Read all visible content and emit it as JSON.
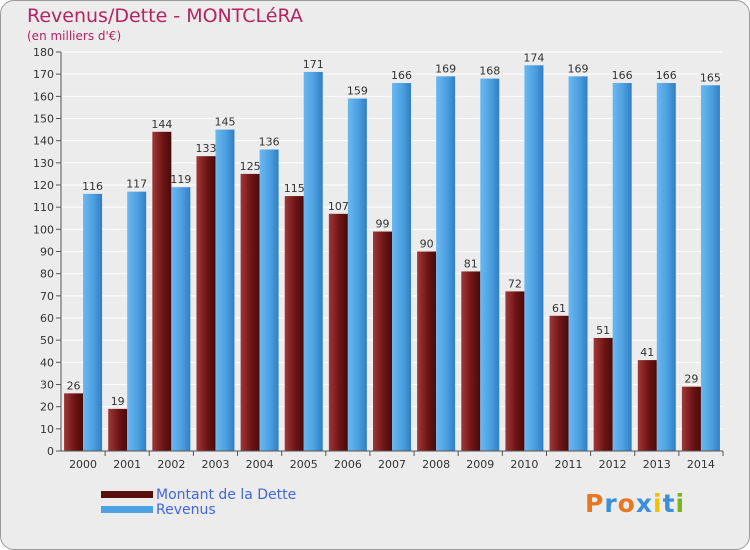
{
  "title": "Revenus/Dette - MONTCLéRA",
  "subtitle": "(en milliers d'€)",
  "legend": {
    "dette": "Montant de la Dette",
    "revenus": "Revenus"
  },
  "logo": "Proxiti",
  "colors": {
    "dette": "#701a1a",
    "revenus": "#4ea3e4",
    "title": "#b4245e",
    "legend_text": "#4466dd"
  },
  "chart_data": {
    "type": "bar",
    "title": "Revenus/Dette - MONTCLéRA",
    "subtitle": "(en milliers d'€)",
    "categories": [
      "2000",
      "2001",
      "2002",
      "2003",
      "2004",
      "2005",
      "2006",
      "2007",
      "2008",
      "2009",
      "2010",
      "2011",
      "2012",
      "2013",
      "2014"
    ],
    "series": [
      {
        "name": "Montant de la Dette",
        "values": [
          26,
          19,
          144,
          133,
          125,
          115,
          107,
          99,
          90,
          81,
          72,
          61,
          51,
          41,
          29
        ]
      },
      {
        "name": "Revenus",
        "values": [
          116,
          117,
          119,
          145,
          136,
          171,
          159,
          166,
          169,
          168,
          174,
          169,
          166,
          166,
          165
        ]
      }
    ],
    "ylim": [
      0,
      180
    ],
    "yticks": [
      0,
      10,
      20,
      30,
      40,
      50,
      60,
      70,
      80,
      90,
      100,
      110,
      120,
      130,
      140,
      150,
      160,
      170,
      180
    ],
    "grid": true,
    "legend_position": "bottom-left"
  }
}
